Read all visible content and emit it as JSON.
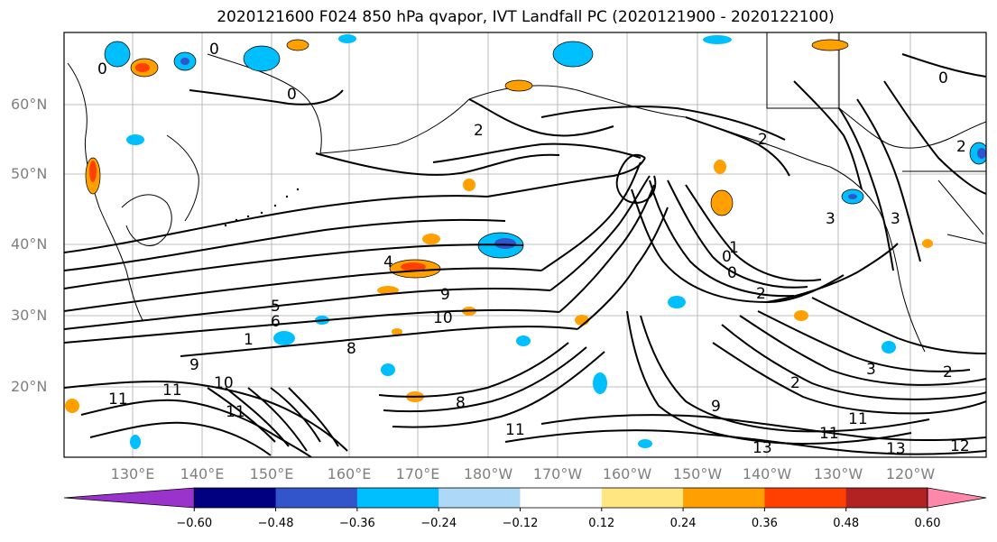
{
  "title": "2020121600 F024 850 hPa qvapor, IVT Landfall PC (2020121900 - 2020122100)",
  "map": {
    "lat_labels": [
      "60°N",
      "50°N",
      "40°N",
      "30°N",
      "20°N"
    ],
    "lon_labels": [
      "130°E",
      "140°E",
      "150°E",
      "160°E",
      "170°E",
      "180°W",
      "170°W",
      "160°W",
      "150°W",
      "140°W",
      "130°W",
      "120°W"
    ],
    "contour_labels": [
      "0",
      "0",
      "0",
      "0",
      "2",
      "2",
      "2",
      "0",
      "9",
      "10",
      "6",
      "5",
      "8",
      "1",
      "11",
      "11",
      "10",
      "11",
      "9",
      "8",
      "9",
      "11",
      "11",
      "13",
      "11",
      "13",
      "12",
      "2",
      "3",
      "3",
      "2",
      "1",
      "0",
      "4",
      "2",
      "3"
    ]
  },
  "colorbar": {
    "ticks": [
      "−0.60",
      "−0.48",
      "−0.36",
      "−0.24",
      "−0.12",
      "0.12",
      "0.24",
      "0.36",
      "0.48",
      "0.60"
    ],
    "colors": [
      "#9933cc",
      "#000080",
      "#3355cc",
      "#00bfff",
      "#add8f8",
      "#ffffff",
      "#ffe680",
      "#ffa000",
      "#ff4000",
      "#b22222",
      "#ff88aa"
    ]
  }
}
